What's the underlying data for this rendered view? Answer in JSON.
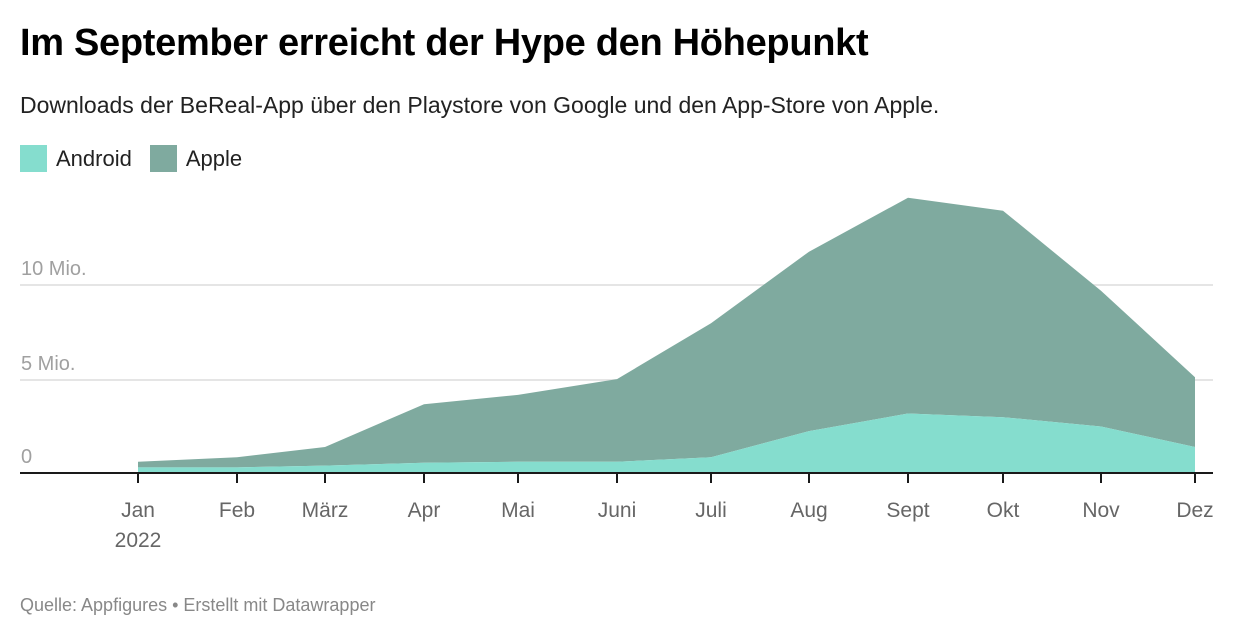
{
  "header": {
    "title": "Im September erreicht der Hype den Höhepunkt",
    "subtitle": "Downloads der BeReal-App über den Playstore von Google und den App-Store von Apple."
  },
  "legend": [
    {
      "label": "Android",
      "color": "#85ddce"
    },
    {
      "label": "Apple",
      "color": "#7faa9f"
    }
  ],
  "footer": {
    "source": "Quelle: Appfigures • Erstellt mit Datawrapper"
  },
  "chart_data": {
    "type": "area",
    "stacked": true,
    "title": "Im September erreicht der Hype den Höhepunkt",
    "subtitle": "Downloads der BeReal-App über den Playstore von Google und den App-Store von Apple.",
    "xlabel": "",
    "ylabel": "",
    "categories": [
      "Jan",
      "Feb",
      "März",
      "Apr",
      "Mai",
      "Juni",
      "Juli",
      "Aug",
      "Sept",
      "Okt",
      "Nov",
      "Dez"
    ],
    "x_sublabel": "2022",
    "series": [
      {
        "name": "Android",
        "color": "#85ddce",
        "values": [
          0.3,
          0.3,
          0.4,
          0.55,
          0.6,
          0.6,
          0.85,
          2.25,
          3.2,
          3.0,
          2.5,
          1.4
        ]
      },
      {
        "name": "Apple",
        "color": "#7faa9f",
        "values": [
          0.3,
          0.55,
          1.0,
          3.15,
          3.6,
          4.45,
          7.2,
          9.65,
          11.6,
          11.1,
          7.3,
          3.75
        ]
      }
    ],
    "totals": [
      0.6,
      0.85,
      1.4,
      3.7,
      4.2,
      5.05,
      8.05,
      11.9,
      14.8,
      14.1,
      9.8,
      5.15
    ],
    "y_ticks": [
      {
        "value": 0,
        "label": "0"
      },
      {
        "value": 5,
        "label": "5 Mio."
      },
      {
        "value": 10,
        "label": "10 Mio."
      }
    ],
    "ylim": [
      0,
      15
    ],
    "grid": true,
    "legend_position": "top-left",
    "source": "Quelle: Appfigures"
  }
}
